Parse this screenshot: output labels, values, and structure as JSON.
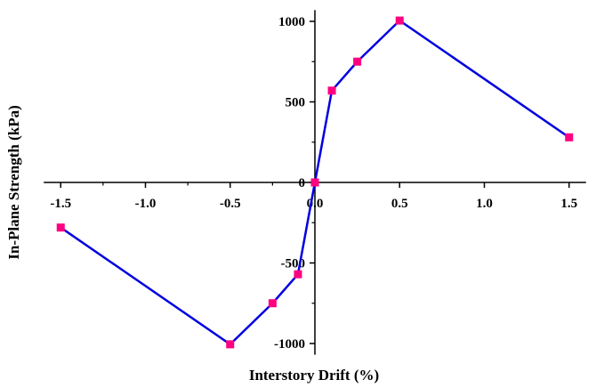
{
  "chart_data": {
    "type": "line",
    "title": "",
    "xlabel": "Interstory Drift (%)",
    "ylabel": "In-Plane Strength (kPa)",
    "xlim": [
      -1.6,
      1.6
    ],
    "ylim": [
      -1000,
      1000
    ],
    "x_ticks": [
      "-1.5",
      "-1.0",
      "-0.5",
      "0.0",
      "0.5",
      "1.0",
      "1.5"
    ],
    "y_ticks": [
      "-1000",
      "-500",
      "0",
      "500",
      "1000"
    ],
    "grid": false,
    "legend": "none",
    "series": [
      {
        "x": [
          -1.5,
          -0.5,
          -0.25,
          -0.1,
          0.0,
          0.1,
          0.25,
          0.5,
          1.5
        ],
        "y": [
          -280,
          -1005,
          -750,
          -570,
          0,
          570,
          750,
          1005,
          280
        ]
      }
    ],
    "line_color": "#0000e0",
    "marker_color": "#ff0080"
  }
}
